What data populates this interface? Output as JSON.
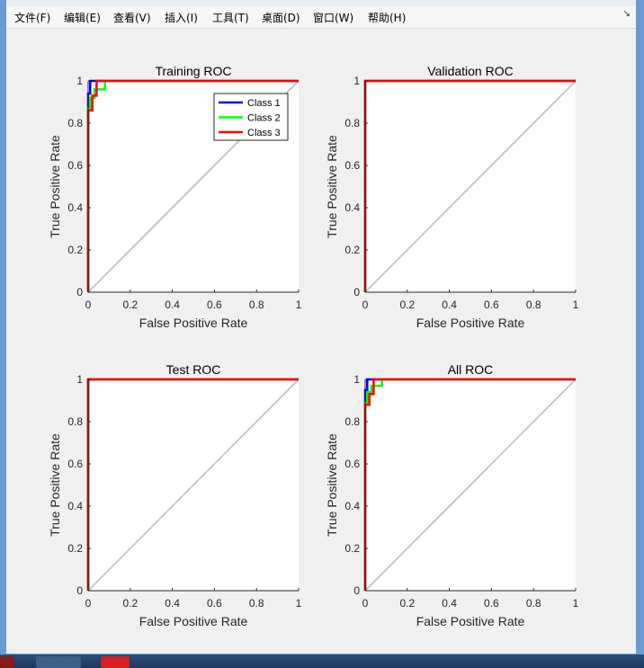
{
  "menu": {
    "items": [
      "文件(F)",
      "编辑(E)",
      "查看(V)",
      "插入(I)",
      "工具(T)",
      "桌面(D)",
      "窗口(W)",
      "帮助(H)"
    ],
    "corner_icon": "arrow-icon"
  },
  "colors": {
    "class1": "#0000ff",
    "class2": "#00ff00",
    "class3": "#ff0000",
    "diagonal": "#c8c8c8"
  },
  "chart_data": [
    {
      "type": "line",
      "title": "Training ROC",
      "xlabel": "False Positive Rate",
      "ylabel": "True Positive Rate",
      "xlim": [
        0,
        1
      ],
      "ylim": [
        0,
        1
      ],
      "xticks": [
        "0",
        "0.2",
        "0.4",
        "0.6",
        "0.8",
        "1"
      ],
      "yticks": [
        "0",
        "0.2",
        "0.4",
        "0.6",
        "0.8",
        "1"
      ],
      "legend": "top-right",
      "legend_entries": [
        "Class 1",
        "Class 2",
        "Class 3"
      ],
      "series": [
        {
          "name": "Class 1",
          "points": [
            [
              0,
              0
            ],
            [
              0,
              0.94
            ],
            [
              0.01,
              0.94
            ],
            [
              0.01,
              1
            ],
            [
              1,
              1
            ]
          ]
        },
        {
          "name": "Class 2",
          "points": [
            [
              0,
              0
            ],
            [
              0,
              0.87
            ],
            [
              0.01,
              0.87
            ],
            [
              0.01,
              0.92
            ],
            [
              0.03,
              0.92
            ],
            [
              0.03,
              0.96
            ],
            [
              0.08,
              0.96
            ],
            [
              0.08,
              1
            ],
            [
              1,
              1
            ]
          ]
        },
        {
          "name": "Class 3",
          "points": [
            [
              0,
              0
            ],
            [
              0,
              0.86
            ],
            [
              0.02,
              0.86
            ],
            [
              0.02,
              0.93
            ],
            [
              0.04,
              0.93
            ],
            [
              0.04,
              1
            ],
            [
              1,
              1
            ]
          ]
        }
      ]
    },
    {
      "type": "line",
      "title": "Validation ROC",
      "xlabel": "False Positive Rate",
      "ylabel": "True Positive Rate",
      "xlim": [
        0,
        1
      ],
      "ylim": [
        0,
        1
      ],
      "xticks": [
        "0",
        "0.2",
        "0.4",
        "0.6",
        "0.8",
        "1"
      ],
      "yticks": [
        "0",
        "0.2",
        "0.4",
        "0.6",
        "0.8",
        "1"
      ],
      "series": [
        {
          "name": "Class 1",
          "points": [
            [
              0,
              0
            ],
            [
              0,
              1
            ],
            [
              1,
              1
            ]
          ]
        },
        {
          "name": "Class 2",
          "points": [
            [
              0,
              0
            ],
            [
              0,
              1
            ],
            [
              1,
              1
            ]
          ]
        },
        {
          "name": "Class 3",
          "points": [
            [
              0,
              0
            ],
            [
              0,
              1
            ],
            [
              1,
              1
            ]
          ]
        }
      ]
    },
    {
      "type": "line",
      "title": "Test ROC",
      "xlabel": "False Positive Rate",
      "ylabel": "True Positive Rate",
      "xlim": [
        0,
        1
      ],
      "ylim": [
        0,
        1
      ],
      "xticks": [
        "0",
        "0.2",
        "0.4",
        "0.6",
        "0.8",
        "1"
      ],
      "yticks": [
        "0",
        "0.2",
        "0.4",
        "0.6",
        "0.8",
        "1"
      ],
      "series": [
        {
          "name": "Class 1",
          "points": [
            [
              0,
              0
            ],
            [
              0,
              1
            ],
            [
              1,
              1
            ]
          ]
        },
        {
          "name": "Class 2",
          "points": [
            [
              0,
              0
            ],
            [
              0,
              1
            ],
            [
              1,
              1
            ]
          ]
        },
        {
          "name": "Class 3",
          "points": [
            [
              0,
              0
            ],
            [
              0,
              1
            ],
            [
              1,
              1
            ]
          ]
        }
      ]
    },
    {
      "type": "line",
      "title": "All ROC",
      "xlabel": "False Positive Rate",
      "ylabel": "True Positive Rate",
      "xlim": [
        0,
        1
      ],
      "ylim": [
        0,
        1
      ],
      "xticks": [
        "0",
        "0.2",
        "0.4",
        "0.6",
        "0.8",
        "1"
      ],
      "yticks": [
        "0",
        "0.2",
        "0.4",
        "0.6",
        "0.8",
        "1"
      ],
      "series": [
        {
          "name": "Class 1",
          "points": [
            [
              0,
              0
            ],
            [
              0,
              0.95
            ],
            [
              0.01,
              0.95
            ],
            [
              0.01,
              1
            ],
            [
              1,
              1
            ]
          ]
        },
        {
          "name": "Class 2",
          "points": [
            [
              0,
              0
            ],
            [
              0,
              0.89
            ],
            [
              0.01,
              0.89
            ],
            [
              0.01,
              0.94
            ],
            [
              0.03,
              0.94
            ],
            [
              0.03,
              0.97
            ],
            [
              0.08,
              0.97
            ],
            [
              0.08,
              1
            ],
            [
              1,
              1
            ]
          ]
        },
        {
          "name": "Class 3",
          "points": [
            [
              0,
              0
            ],
            [
              0,
              0.88
            ],
            [
              0.02,
              0.88
            ],
            [
              0.02,
              0.93
            ],
            [
              0.04,
              0.93
            ],
            [
              0.04,
              1
            ],
            [
              1,
              1
            ]
          ]
        }
      ]
    }
  ]
}
